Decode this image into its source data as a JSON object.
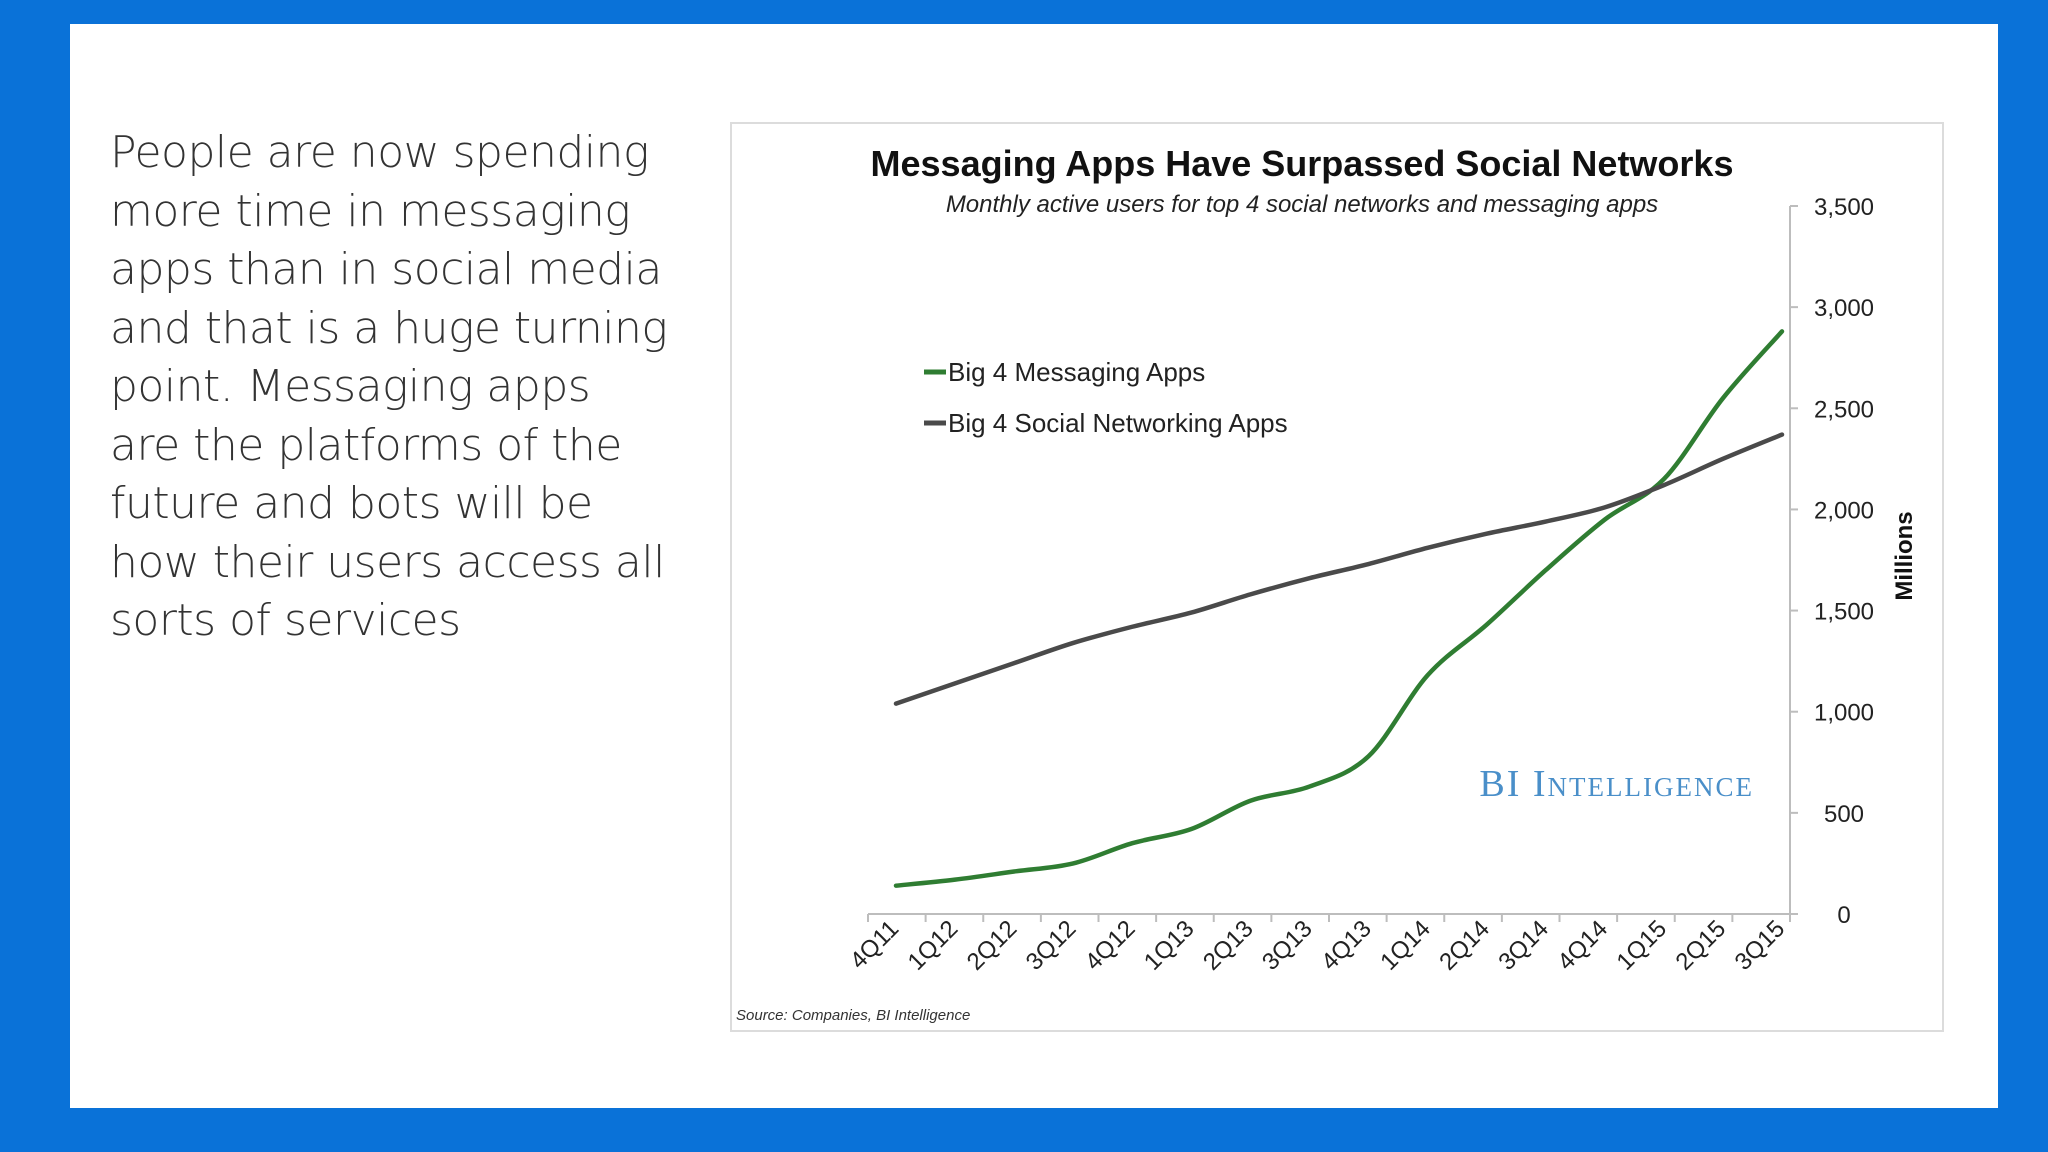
{
  "slide": {
    "body_text": "People are now spending more time in messaging apps than in social media and that is a huge turning point. Messaging apps are the platforms of the future and bots will be how their users access all sorts of services"
  },
  "colors": {
    "background": "#0a72d8",
    "messaging": "#2f7d32",
    "social": "#4a4a4a",
    "watermark": "#4a8fc9"
  },
  "chart_data": {
    "type": "line",
    "title": "Messaging Apps Have Surpassed Social Networks",
    "subtitle": "Monthly active users for top 4 social networks and messaging apps",
    "ylabel": "Millions",
    "xlabel": "",
    "ylim": [
      0,
      3500
    ],
    "yticks": [
      "0",
      "500",
      "1,000",
      "1,500",
      "2,000",
      "2,500",
      "3,000",
      "3,500"
    ],
    "y_axis_position": "right",
    "legend_position": "top-left",
    "grid": false,
    "categories": [
      "4Q11",
      "1Q12",
      "2Q12",
      "3Q12",
      "4Q12",
      "1Q13",
      "2Q13",
      "3Q13",
      "4Q13",
      "1Q14",
      "2Q14",
      "3Q14",
      "4Q14",
      "1Q15",
      "2Q15",
      "3Q15"
    ],
    "series": [
      {
        "name": "Big 4 Messaging Apps",
        "values": [
          140,
          170,
          210,
          250,
          350,
          420,
          560,
          630,
          780,
          1180,
          1430,
          1700,
          1950,
          2150,
          2550,
          2880
        ]
      },
      {
        "name": "Big 4 Social Networking Apps",
        "values": [
          1040,
          1140,
          1240,
          1340,
          1420,
          1490,
          1580,
          1660,
          1730,
          1810,
          1880,
          1940,
          2010,
          2120,
          2250,
          2370
        ]
      }
    ],
    "watermark": "BI Intelligence",
    "source": "Source: Companies, BI Intelligence"
  }
}
